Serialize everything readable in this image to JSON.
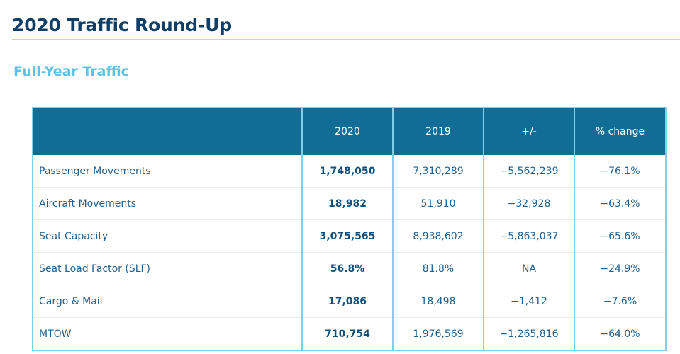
{
  "page": {
    "title": "2020 Traffic Round-Up",
    "subtitle": "Full-Year Traffic"
  },
  "table": {
    "headers": [
      "",
      "2020",
      "2019",
      "+/-",
      "% change"
    ],
    "rows": [
      {
        "metric": "Passenger Movements",
        "y2020": "1,748,050",
        "y2019": "7,310,289",
        "diff": "−5,562,239",
        "pct": "−76.1%"
      },
      {
        "metric": "Aircraft Movements",
        "y2020": "18,982",
        "y2019": "51,910",
        "diff": "−32,928",
        "pct": "−63.4%"
      },
      {
        "metric": "Seat Capacity",
        "y2020": "3,075,565",
        "y2019": "8,938,602",
        "diff": "−5,863,037",
        "pct": "−65.6%"
      },
      {
        "metric": "Seat Load Factor (SLF)",
        "y2020": "56.8%",
        "y2019": "81.8%",
        "diff": "NA",
        "pct": "−24.9%"
      },
      {
        "metric": "Cargo & Mail",
        "y2020": "17,086",
        "y2019": "18,498",
        "diff": "−1,412",
        "pct": "−7.6%"
      },
      {
        "metric": "MTOW",
        "y2020": "710,754",
        "y2019": "1,976,569",
        "diff": "−1,265,816",
        "pct": "−64.0%"
      }
    ]
  },
  "colors": {
    "header_bg": "#116c96",
    "title": "#0f3e66",
    "subtitle": "#5cc3e6",
    "rule": "#f5cc8a",
    "border": "#7fd0ea"
  }
}
